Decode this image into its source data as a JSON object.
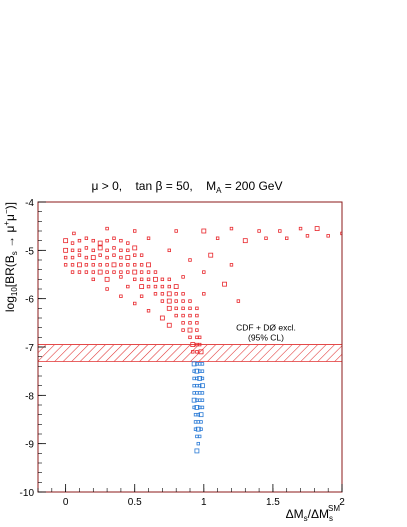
{
  "colors": {
    "frame": "#8b1a1a",
    "exclusion_hatch": "#e03030",
    "allowed_points": "#e8262b",
    "excluded_points": "#2b7bd6",
    "axes": "#000000"
  },
  "chart_data": {
    "type": "scatter",
    "title_parts": {
      "mu": "μ > 0,",
      "tanb": "tan β = 50,",
      "ma": "M",
      "ma_sub": "A",
      "ma_val": " = 200 GeV"
    },
    "xlabel_parts": {
      "p1": "ΔM",
      "s1": "s",
      "p2": "/ΔM",
      "s2": "s",
      "sup": "SM"
    },
    "ylabel_parts": {
      "p1": "log",
      "s1": "10",
      "p2": "[BR(B",
      "s2": "s",
      "p3": " → μ",
      "sup1": "+",
      "p4": "μ",
      "sup2": "−",
      "p5": ")]"
    },
    "xlim": [
      -0.2,
      2.0
    ],
    "ylim": [
      -10,
      -4
    ],
    "x_ticks": [
      0,
      0.5,
      1,
      1.5,
      2
    ],
    "x_tick_labels": [
      "0",
      "0.5",
      "1",
      "1.5",
      "2"
    ],
    "y_ticks": [
      -10,
      -9,
      -8,
      -7,
      -6,
      -5,
      -4
    ],
    "y_tick_labels": [
      "-10",
      "-9",
      "-8",
      "-7",
      "-6",
      "-5",
      "-4"
    ],
    "exclusion_band": {
      "y_range": [
        -7.3,
        -6.95
      ],
      "x_range": [
        -0.2,
        2.0
      ]
    },
    "annotation": {
      "line1": "CDF + DØ excl.",
      "line2": "(95% CL)",
      "x": 1.45,
      "y": -6.7
    },
    "series": [
      {
        "color": "#e8262b",
        "points": [
          [
            0.0,
            -4.8
          ],
          [
            0.05,
            -4.85
          ],
          [
            0.1,
            -4.8
          ],
          [
            0.15,
            -4.75
          ],
          [
            0.2,
            -4.8
          ],
          [
            0.25,
            -4.85
          ],
          [
            0.3,
            -4.8
          ],
          [
            0.35,
            -4.75
          ],
          [
            0.4,
            -4.8
          ],
          [
            0.45,
            -4.85
          ],
          [
            0.0,
            -5.0
          ],
          [
            0.05,
            -5.0
          ],
          [
            0.1,
            -5.0
          ],
          [
            0.15,
            -4.95
          ],
          [
            0.2,
            -5.0
          ],
          [
            0.25,
            -4.95
          ],
          [
            0.3,
            -5.0
          ],
          [
            0.35,
            -4.95
          ],
          [
            0.4,
            -5.0
          ],
          [
            0.45,
            -5.0
          ],
          [
            0.5,
            -4.95
          ],
          [
            0.0,
            -5.15
          ],
          [
            0.05,
            -5.15
          ],
          [
            0.1,
            -5.1
          ],
          [
            0.15,
            -5.15
          ],
          [
            0.2,
            -5.15
          ],
          [
            0.25,
            -5.1
          ],
          [
            0.3,
            -5.15
          ],
          [
            0.35,
            -5.1
          ],
          [
            0.4,
            -5.15
          ],
          [
            0.45,
            -5.15
          ],
          [
            0.5,
            -5.1
          ],
          [
            0.55,
            -5.1
          ],
          [
            0.0,
            -5.3
          ],
          [
            0.05,
            -5.3
          ],
          [
            0.1,
            -5.3
          ],
          [
            0.15,
            -5.3
          ],
          [
            0.2,
            -5.3
          ],
          [
            0.25,
            -5.3
          ],
          [
            0.3,
            -5.3
          ],
          [
            0.35,
            -5.3
          ],
          [
            0.4,
            -5.3
          ],
          [
            0.45,
            -5.3
          ],
          [
            0.5,
            -5.3
          ],
          [
            0.55,
            -5.3
          ],
          [
            0.6,
            -5.3
          ],
          [
            0.05,
            -5.45
          ],
          [
            0.1,
            -5.45
          ],
          [
            0.15,
            -5.45
          ],
          [
            0.2,
            -5.45
          ],
          [
            0.25,
            -5.45
          ],
          [
            0.3,
            -5.45
          ],
          [
            0.35,
            -5.45
          ],
          [
            0.4,
            -5.45
          ],
          [
            0.45,
            -5.45
          ],
          [
            0.5,
            -5.45
          ],
          [
            0.55,
            -5.45
          ],
          [
            0.6,
            -5.45
          ],
          [
            0.65,
            -5.45
          ],
          [
            0.2,
            -5.6
          ],
          [
            0.3,
            -5.6
          ],
          [
            0.4,
            -5.55
          ],
          [
            0.5,
            -5.6
          ],
          [
            0.55,
            -5.6
          ],
          [
            0.6,
            -5.6
          ],
          [
            0.65,
            -5.6
          ],
          [
            0.7,
            -5.6
          ],
          [
            0.75,
            -5.6
          ],
          [
            0.3,
            -5.8
          ],
          [
            0.45,
            -5.75
          ],
          [
            0.55,
            -5.75
          ],
          [
            0.6,
            -5.75
          ],
          [
            0.65,
            -5.75
          ],
          [
            0.7,
            -5.75
          ],
          [
            0.75,
            -5.75
          ],
          [
            0.8,
            -5.75
          ],
          [
            0.4,
            -5.95
          ],
          [
            0.55,
            -5.95
          ],
          [
            0.65,
            -5.9
          ],
          [
            0.7,
            -5.9
          ],
          [
            0.75,
            -5.9
          ],
          [
            0.8,
            -5.9
          ],
          [
            0.85,
            -5.9
          ],
          [
            0.5,
            -6.1
          ],
          [
            0.7,
            -6.05
          ],
          [
            0.75,
            -6.05
          ],
          [
            0.8,
            -6.05
          ],
          [
            0.85,
            -6.05
          ],
          [
            0.9,
            -6.05
          ],
          [
            0.6,
            -6.25
          ],
          [
            0.75,
            -6.2
          ],
          [
            0.8,
            -6.2
          ],
          [
            0.85,
            -6.2
          ],
          [
            0.9,
            -6.2
          ],
          [
            0.95,
            -6.2
          ],
          [
            0.7,
            -6.4
          ],
          [
            0.8,
            -6.35
          ],
          [
            0.85,
            -6.35
          ],
          [
            0.9,
            -6.35
          ],
          [
            0.95,
            -6.35
          ],
          [
            0.75,
            -6.55
          ],
          [
            0.85,
            -6.5
          ],
          [
            0.9,
            -6.5
          ],
          [
            0.95,
            -6.5
          ],
          [
            0.85,
            -6.65
          ],
          [
            0.9,
            -6.65
          ],
          [
            0.95,
            -6.65
          ],
          [
            0.9,
            -6.8
          ],
          [
            0.95,
            -6.8
          ],
          [
            0.97,
            -6.8
          ],
          [
            0.92,
            -6.95
          ],
          [
            0.95,
            -6.95
          ],
          [
            0.97,
            -6.95
          ],
          [
            0.92,
            -7.1
          ],
          [
            0.95,
            -7.1
          ],
          [
            0.98,
            -7.1
          ],
          [
            0.06,
            -4.65
          ],
          [
            0.3,
            -4.55
          ],
          [
            0.5,
            -4.6
          ],
          [
            0.8,
            -4.6
          ],
          [
            1.0,
            -4.6
          ],
          [
            1.2,
            -4.55
          ],
          [
            1.4,
            -4.6
          ],
          [
            1.55,
            -4.6
          ],
          [
            1.7,
            -4.55
          ],
          [
            1.82,
            -4.55
          ],
          [
            1.9,
            -4.7
          ],
          [
            2.0,
            -4.65
          ],
          [
            0.6,
            -4.75
          ],
          [
            1.1,
            -4.75
          ],
          [
            1.3,
            -4.8
          ],
          [
            1.45,
            -4.75
          ],
          [
            1.6,
            -4.75
          ],
          [
            1.75,
            -4.7
          ],
          [
            0.75,
            -5.0
          ],
          [
            1.05,
            -5.1
          ],
          [
            1.2,
            -5.3
          ],
          [
            0.9,
            -5.2
          ],
          [
            1.0,
            -5.45
          ],
          [
            0.85,
            -5.55
          ],
          [
            1.15,
            -5.7
          ],
          [
            1.0,
            -5.9
          ],
          [
            1.25,
            -6.05
          ]
        ]
      },
      {
        "color": "#2b7bd6",
        "points": [
          [
            0.93,
            -7.35
          ],
          [
            0.95,
            -7.35
          ],
          [
            0.97,
            -7.35
          ],
          [
            0.99,
            -7.35
          ],
          [
            0.93,
            -7.5
          ],
          [
            0.95,
            -7.5
          ],
          [
            0.97,
            -7.5
          ],
          [
            0.99,
            -7.5
          ],
          [
            0.93,
            -7.65
          ],
          [
            0.95,
            -7.65
          ],
          [
            0.97,
            -7.65
          ],
          [
            0.99,
            -7.65
          ],
          [
            0.93,
            -7.8
          ],
          [
            0.95,
            -7.8
          ],
          [
            0.97,
            -7.8
          ],
          [
            0.99,
            -7.8
          ],
          [
            0.93,
            -7.95
          ],
          [
            0.95,
            -7.95
          ],
          [
            0.97,
            -7.95
          ],
          [
            0.99,
            -7.95
          ],
          [
            0.93,
            -8.1
          ],
          [
            0.95,
            -8.1
          ],
          [
            0.97,
            -8.1
          ],
          [
            0.99,
            -8.1
          ],
          [
            0.93,
            -8.25
          ],
          [
            0.95,
            -8.25
          ],
          [
            0.97,
            -8.25
          ],
          [
            0.99,
            -8.25
          ],
          [
            0.94,
            -8.4
          ],
          [
            0.96,
            -8.4
          ],
          [
            0.98,
            -8.4
          ],
          [
            0.94,
            -8.55
          ],
          [
            0.96,
            -8.55
          ],
          [
            0.98,
            -8.55
          ],
          [
            0.94,
            -8.7
          ],
          [
            0.96,
            -8.7
          ],
          [
            0.98,
            -8.7
          ],
          [
            0.95,
            -8.85
          ],
          [
            0.97,
            -8.85
          ],
          [
            0.96,
            -9.0
          ],
          [
            0.95,
            -9.15
          ]
        ]
      }
    ]
  }
}
